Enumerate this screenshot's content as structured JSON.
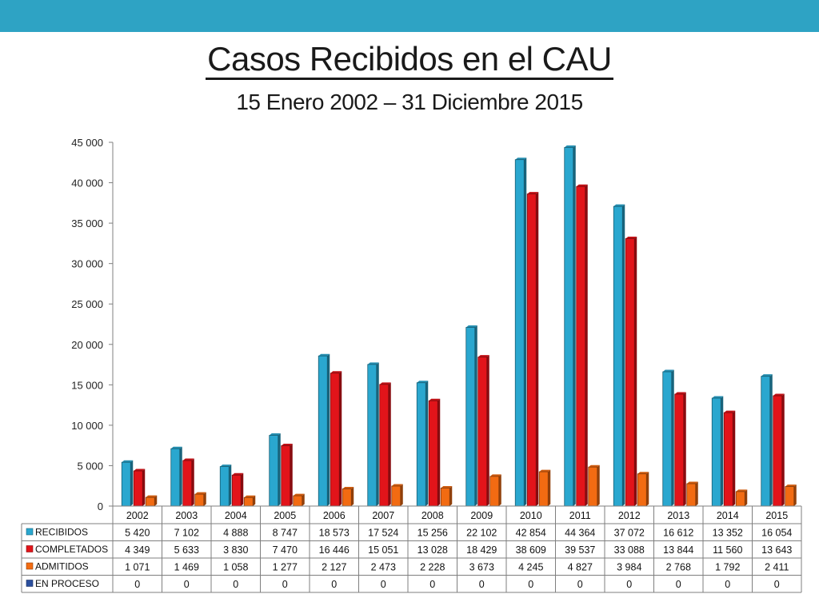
{
  "colors": {
    "topbar": "#2ea3c4",
    "recibidos": "#2aa7cf",
    "completados": "#e2141a",
    "admitidos": "#f26b12",
    "en_proceso": "#2b4f9e",
    "grid": "#7f7f7f"
  },
  "header": {
    "title": "Casos Recibidos en el CAU",
    "subtitle": "15 Enero 2002 – 31 Diciembre 2015"
  },
  "chart_data": {
    "type": "bar",
    "title": "Casos Recibidos en el CAU",
    "subtitle": "15 Enero 2002 – 31 Diciembre 2015",
    "categories": [
      "2002",
      "2003",
      "2004",
      "2005",
      "2006",
      "2007",
      "2008",
      "2009",
      "2010",
      "2011",
      "2012",
      "2013",
      "2014",
      "2015"
    ],
    "ylim": [
      0,
      45000
    ],
    "yticks": [
      0,
      5000,
      10000,
      15000,
      20000,
      25000,
      30000,
      35000,
      40000,
      45000
    ],
    "ytick_labels": [
      "0",
      "5 000",
      "10 000",
      "15 000",
      "20 000",
      "25 000",
      "30 000",
      "35 000",
      "40 000",
      "45 000"
    ],
    "grid": false,
    "legend": "data-table",
    "series": [
      {
        "name": "RECIBIDOS",
        "values": [
          5420,
          7102,
          4888,
          8747,
          18573,
          17524,
          15256,
          22102,
          42854,
          44364,
          37072,
          16612,
          13352,
          16054
        ],
        "labels": [
          "5 420",
          "7 102",
          "4 888",
          "8 747",
          "18 573",
          "17 524",
          "15 256",
          "22 102",
          "42 854",
          "44 364",
          "37 072",
          "16 612",
          "13 352",
          "16 054"
        ]
      },
      {
        "name": "COMPLETADOS",
        "values": [
          4349,
          5633,
          3830,
          7470,
          16446,
          15051,
          13028,
          18429,
          38609,
          39537,
          33088,
          13844,
          11560,
          13643
        ],
        "labels": [
          "4 349",
          "5 633",
          "3 830",
          "7 470",
          "16 446",
          "15 051",
          "13 028",
          "18 429",
          "38 609",
          "39 537",
          "33 088",
          "13 844",
          "11 560",
          "13 643"
        ]
      },
      {
        "name": "ADMITIDOS",
        "values": [
          1071,
          1469,
          1058,
          1277,
          2127,
          2473,
          2228,
          3673,
          4245,
          4827,
          3984,
          2768,
          1792,
          2411
        ],
        "labels": [
          "1 071",
          "1 469",
          "1 058",
          "1 277",
          "2 127",
          "2 473",
          "2 228",
          "3 673",
          "4 245",
          "4 827",
          "3 984",
          "2 768",
          "1 792",
          "2 411"
        ]
      },
      {
        "name": "EN PROCESO",
        "values": [
          0,
          0,
          0,
          0,
          0,
          0,
          0,
          0,
          0,
          0,
          0,
          0,
          0,
          0
        ],
        "labels": [
          "0",
          "0",
          "0",
          "0",
          "0",
          "0",
          "0",
          "0",
          "0",
          "0",
          "0",
          "0",
          "0",
          "0"
        ]
      }
    ]
  }
}
